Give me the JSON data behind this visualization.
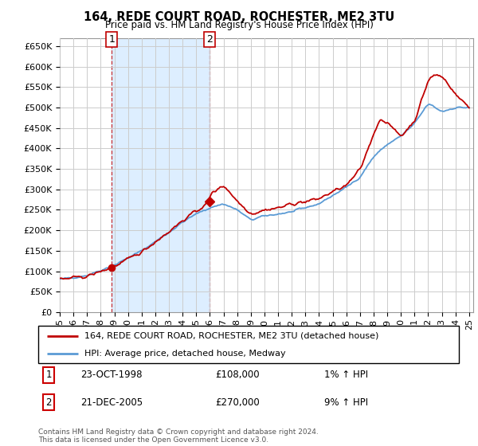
{
  "title": "164, REDE COURT ROAD, ROCHESTER, ME2 3TU",
  "subtitle": "Price paid vs. HM Land Registry's House Price Index (HPI)",
  "ytick_values": [
    0,
    50000,
    100000,
    150000,
    200000,
    250000,
    300000,
    350000,
    400000,
    450000,
    500000,
    550000,
    600000,
    650000
  ],
  "ylim": [
    0,
    670000
  ],
  "sale1": {
    "date_num": 1998.81,
    "price": 108000,
    "label": "1"
  },
  "sale2": {
    "date_num": 2005.97,
    "price": 270000,
    "label": "2"
  },
  "hpi_color": "#5b9bd5",
  "shade_color": "#ddeeff",
  "price_color": "#c00000",
  "marker_color": "#c00000",
  "legend_house": "164, REDE COURT ROAD, ROCHESTER, ME2 3TU (detached house)",
  "legend_hpi": "HPI: Average price, detached house, Medway",
  "table_row1": [
    "1",
    "23-OCT-1998",
    "£108,000",
    "1% ↑ HPI"
  ],
  "table_row2": [
    "2",
    "21-DEC-2005",
    "£270,000",
    "9% ↑ HPI"
  ],
  "footnote": "Contains HM Land Registry data © Crown copyright and database right 2024.\nThis data is licensed under the Open Government Licence v3.0.",
  "bg_color": "#ffffff",
  "grid_color": "#cccccc",
  "start_year": 1995,
  "end_year": 2025
}
